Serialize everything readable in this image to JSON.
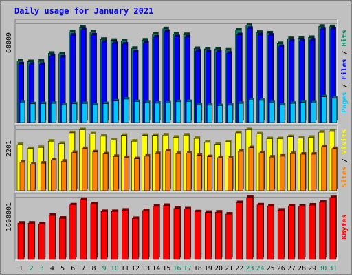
{
  "title": "Daily usage for January 2021",
  "colors": {
    "background": "#c0c0c0",
    "hits": "#00805c",
    "files": "#0000ff",
    "pages": "#00c8ff",
    "visits": "#ffff00",
    "sites": "#ff8000",
    "kbytes": "#ff0000",
    "weekend_label": "#00805c",
    "weekday_label": "#000000"
  },
  "chart_data": [
    {
      "type": "bar",
      "title": "",
      "ylabel_parts": [
        {
          "text": "Pages",
          "color": "#00c8ff"
        },
        {
          "text": " / ",
          "color": "#000000"
        },
        {
          "text": "Files",
          "color": "#0000ff"
        },
        {
          "text": " / ",
          "color": "#000000"
        },
        {
          "text": "Hits",
          "color": "#00805c"
        }
      ],
      "max_label": "68809",
      "ylim": [
        0,
        68809
      ],
      "categories": [
        "1",
        "2",
        "3",
        "4",
        "5",
        "6",
        "7",
        "8",
        "9",
        "10",
        "11",
        "12",
        "13",
        "14",
        "15",
        "16",
        "17",
        "18",
        "19",
        "20",
        "21",
        "22",
        "23",
        "24",
        "25",
        "26",
        "27",
        "28",
        "29",
        "30",
        "31"
      ],
      "series": [
        {
          "name": "Hits",
          "color": "#00805c",
          "values": [
            42900,
            42500,
            42700,
            48200,
            47900,
            63000,
            66300,
            62800,
            57800,
            57100,
            56800,
            51600,
            57300,
            61300,
            65100,
            61500,
            61100,
            51500,
            51200,
            51200,
            50400,
            64400,
            67600,
            62600,
            62200,
            54900,
            58300,
            58500,
            59100,
            66800,
            66500
          ]
        },
        {
          "name": "Files",
          "color": "#0000ff",
          "values": [
            40900,
            40600,
            40600,
            46300,
            45600,
            60600,
            64700,
            60800,
            55800,
            54900,
            54600,
            49300,
            55300,
            59300,
            63200,
            59600,
            59300,
            49700,
            49300,
            49100,
            48200,
            61000,
            65300,
            60800,
            60600,
            52800,
            56700,
            56800,
            57300,
            64900,
            65000
          ]
        },
        {
          "name": "Pages",
          "color": "#00c8ff",
          "values": [
            14100,
            13400,
            13500,
            13700,
            12600,
            13400,
            13600,
            12800,
            13500,
            15300,
            16600,
            14900,
            14100,
            13800,
            13900,
            14800,
            14900,
            12600,
            12400,
            12100,
            12400,
            13700,
            15900,
            15700,
            14100,
            12600,
            13700,
            14300,
            14000,
            18200,
            17200
          ]
        }
      ]
    },
    {
      "type": "bar",
      "title": "",
      "ylabel_parts": [
        {
          "text": "Sites",
          "color": "#ff8000"
        },
        {
          "text": " / ",
          "color": "#000000"
        },
        {
          "text": "Visits",
          "color": "#ffff00"
        }
      ],
      "max_label": "2201",
      "ylim": [
        0,
        2201
      ],
      "categories": [
        "1",
        "2",
        "3",
        "4",
        "5",
        "6",
        "7",
        "8",
        "9",
        "10",
        "11",
        "12",
        "13",
        "14",
        "15",
        "16",
        "17",
        "18",
        "19",
        "20",
        "21",
        "22",
        "23",
        "24",
        "25",
        "26",
        "27",
        "28",
        "29",
        "30",
        "31"
      ],
      "series": [
        {
          "name": "Visits",
          "color": "#ffff00",
          "values": [
            1660,
            1520,
            1560,
            1780,
            1700,
            2080,
            2190,
            2040,
            1960,
            1820,
            1990,
            1780,
            1990,
            1990,
            2000,
            1920,
            2000,
            1880,
            1740,
            1670,
            1760,
            2080,
            2190,
            2040,
            1870,
            1870,
            1940,
            1890,
            1920,
            2100,
            2130
          ]
        },
        {
          "name": "Sites",
          "color": "#ff8000",
          "values": [
            1030,
            960,
            1000,
            1120,
            1070,
            1380,
            1520,
            1400,
            1330,
            1240,
            1200,
            1160,
            1250,
            1340,
            1440,
            1340,
            1360,
            1280,
            1230,
            1200,
            1190,
            1420,
            1550,
            1370,
            1220,
            1250,
            1340,
            1320,
            1320,
            1590,
            1520
          ]
        }
      ]
    },
    {
      "type": "bar",
      "title": "",
      "ylabel_parts": [
        {
          "text": "KBytes",
          "color": "#ff0000"
        }
      ],
      "max_label": "1698801",
      "ylim": [
        0,
        1698801
      ],
      "categories": [
        "1",
        "2",
        "3",
        "4",
        "5",
        "6",
        "7",
        "8",
        "9",
        "10",
        "11",
        "12",
        "13",
        "14",
        "15",
        "16",
        "17",
        "18",
        "19",
        "20",
        "21",
        "22",
        "23",
        "24",
        "25",
        "26",
        "27",
        "28",
        "29",
        "30",
        "31"
      ],
      "series": [
        {
          "name": "KBytes",
          "color": "#ff0000",
          "values": [
            1004000,
            1004000,
            980000,
            1214000,
            1138000,
            1498000,
            1647000,
            1530000,
            1319000,
            1319000,
            1355000,
            1131000,
            1344000,
            1460000,
            1484000,
            1403000,
            1391000,
            1312000,
            1295000,
            1303000,
            1250000,
            1560000,
            1698801,
            1498000,
            1471000,
            1355000,
            1471000,
            1460000,
            1494000,
            1572000,
            1696000
          ]
        }
      ]
    }
  ],
  "day_labels": [
    {
      "text": "1",
      "weekend": false
    },
    {
      "text": "2",
      "weekend": true
    },
    {
      "text": "3",
      "weekend": true
    },
    {
      "text": "4",
      "weekend": false
    },
    {
      "text": "5",
      "weekend": false
    },
    {
      "text": "6",
      "weekend": false
    },
    {
      "text": "7",
      "weekend": false
    },
    {
      "text": "8",
      "weekend": false
    },
    {
      "text": "9",
      "weekend": true
    },
    {
      "text": "10",
      "weekend": true
    },
    {
      "text": "11",
      "weekend": false
    },
    {
      "text": "12",
      "weekend": false
    },
    {
      "text": "13",
      "weekend": false
    },
    {
      "text": "14",
      "weekend": false
    },
    {
      "text": "15",
      "weekend": false
    },
    {
      "text": "16",
      "weekend": true
    },
    {
      "text": "17",
      "weekend": true
    },
    {
      "text": "18",
      "weekend": false
    },
    {
      "text": "19",
      "weekend": false
    },
    {
      "text": "20",
      "weekend": false
    },
    {
      "text": "21",
      "weekend": false
    },
    {
      "text": "22",
      "weekend": false
    },
    {
      "text": "23",
      "weekend": true
    },
    {
      "text": "24",
      "weekend": true
    },
    {
      "text": "25",
      "weekend": false
    },
    {
      "text": "26",
      "weekend": false
    },
    {
      "text": "27",
      "weekend": false
    },
    {
      "text": "28",
      "weekend": false
    },
    {
      "text": "29",
      "weekend": false
    },
    {
      "text": "30",
      "weekend": true
    },
    {
      "text": "31",
      "weekend": true
    }
  ]
}
